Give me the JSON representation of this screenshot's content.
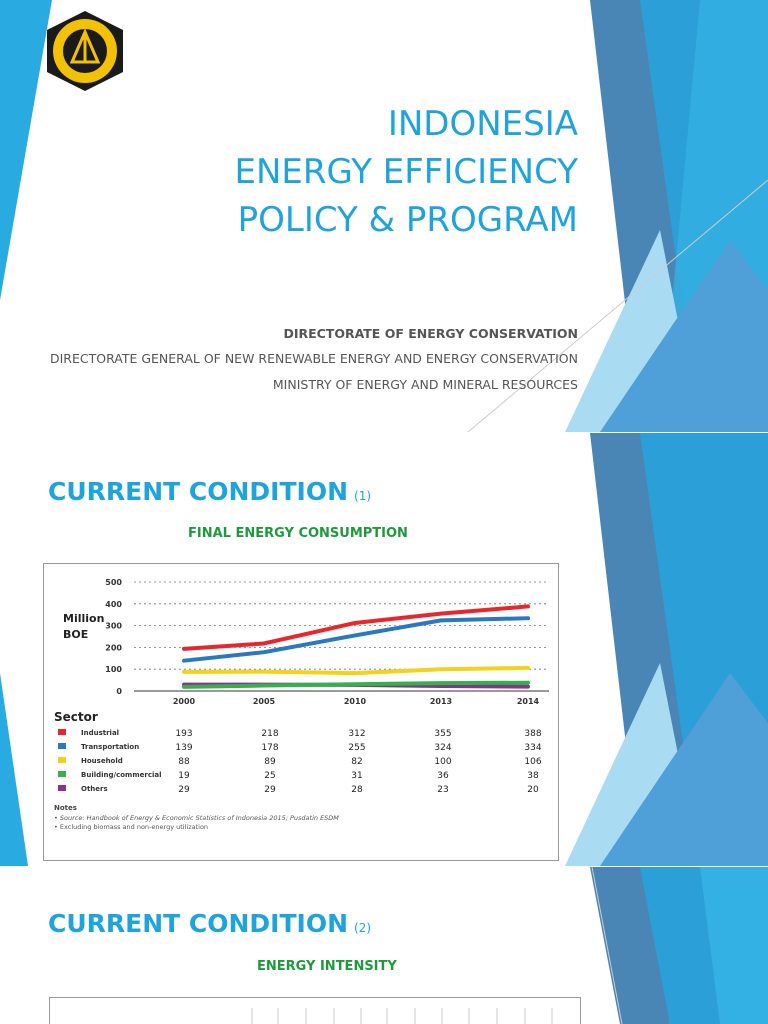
{
  "slide1": {
    "title_lines": [
      "INDONESIA",
      "ENERGY EFFICIENCY",
      "POLICY & PROGRAM"
    ],
    "sub1": "DIRECTORATE OF ENERGY CONSERVATION",
    "sub2": "DIRECTORATE GENERAL OF NEW RENEWABLE ENERGY AND ENERGY CONSERVATION",
    "sub3": "MINISTRY OF ENERGY AND MINERAL RESOURCES",
    "logo_text": "KEMENTERIAN ENERGI DAN SUMBER DAYA MINERAL"
  },
  "slide2": {
    "heading": "CURRENT CONDITION",
    "num": "(1)",
    "caption": "FINAL ENERGY CONSUMPTION"
  },
  "slide3": {
    "heading": "CURRENT CONDITION",
    "num": "(2)",
    "caption": "ENERGY INTENSITY"
  },
  "colors": {
    "accent": "#1fa3dc",
    "caption": "#1e9a3c"
  },
  "chart_data": {
    "type": "line",
    "x": [
      "2000",
      "2005",
      "2010",
      "2013",
      "2014"
    ],
    "ylabel": "Million BOE",
    "ylim": [
      0,
      500
    ],
    "yticks": [
      0,
      100,
      200,
      300,
      400,
      500
    ],
    "grid": "dashed horizontal",
    "legend_title": "Sector",
    "series": [
      {
        "name": "Industrial",
        "color": "#e8262b",
        "values": [
          193,
          218,
          312,
          355,
          388
        ]
      },
      {
        "name": "Transportation",
        "color": "#2a78c2",
        "values": [
          139,
          178,
          255,
          324,
          334
        ]
      },
      {
        "name": "Household",
        "color": "#f2d21b",
        "values": [
          88,
          89,
          82,
          100,
          106
        ]
      },
      {
        "name": "Building/commercial",
        "color": "#33b24a",
        "values": [
          19,
          25,
          31,
          36,
          38
        ]
      },
      {
        "name": "Others",
        "color": "#8e2d92",
        "values": [
          29,
          29,
          28,
          23,
          20
        ]
      }
    ],
    "notes_title": "Notes",
    "notes": [
      "• Source: Handbook of Energy & Economic Statistics of Indonesia 2015; Pusdatin ESDM",
      "• Excluding biomass and non-energy utilization"
    ]
  }
}
